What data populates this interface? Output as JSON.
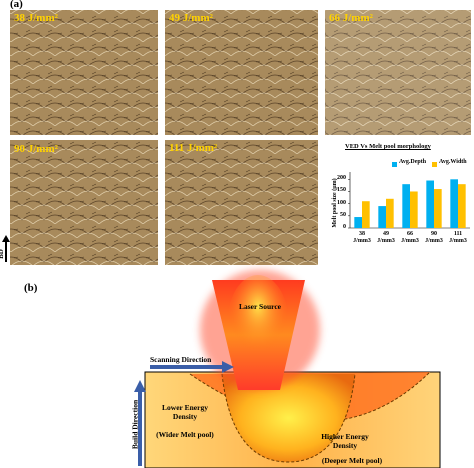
{
  "panel_a": {
    "label": "(a)",
    "micrographs": [
      "38 J/mm²",
      "49 J/mm²",
      "66 J/mm²",
      "90 J/mm²",
      "111 J/mm²"
    ],
    "build_label": "BD"
  },
  "chart_data": {
    "type": "bar",
    "title": "VED Vs Melt pool morphology",
    "y_label": "Melt pool size (μm)",
    "categories": [
      "38\nJ/mm3",
      "49\nJ/mm3",
      "66\nJ/mm3",
      "90\nJ/mm3",
      "111\nJ/mm3"
    ],
    "series": [
      {
        "name": "Avg.Depth",
        "color": "#00b0f0",
        "values": [
          45,
          90,
          180,
          195,
          200
        ]
      },
      {
        "name": "Avg.Width",
        "color": "#ffc000",
        "values": [
          110,
          120,
          150,
          160,
          180
        ]
      }
    ],
    "ylim": [
      0,
      230
    ],
    "yticks": [
      0,
      50,
      100,
      150,
      200
    ],
    "legend": "top-right"
  },
  "panel_b": {
    "label": "(b)",
    "laser": "Laser Source",
    "scan": "Scanning Direction",
    "build": "Build Direction",
    "lower": "Lower Energy Density",
    "wider": "(Wider Melt pool)",
    "higher": "Higher Energy Density",
    "deeper": "(Deeper Melt pool)"
  }
}
